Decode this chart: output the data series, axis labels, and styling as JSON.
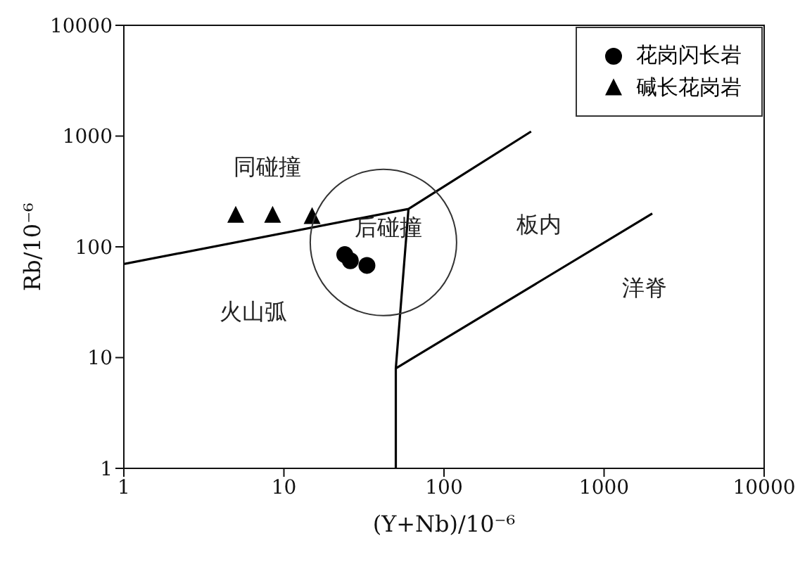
{
  "chart_data": {
    "type": "scatter",
    "xlabel": "(Y+Nb)/10⁻⁶",
    "ylabel": "Rb/10⁻⁶",
    "log": "xy",
    "xlim": [
      1,
      10000
    ],
    "ylim": [
      1,
      10000
    ],
    "xticks": [
      1,
      10,
      100,
      1000,
      10000
    ],
    "yticks": [
      1,
      10,
      100,
      1000,
      10000
    ],
    "grid": false,
    "legend": "top right",
    "series": [
      {
        "name": "花岗闪长岩",
        "marker": "circle",
        "color": "#000000",
        "x": [
          24,
          26,
          33
        ],
        "values": [
          85,
          75,
          68
        ]
      },
      {
        "name": "碱长花岗岩",
        "marker": "triangle",
        "color": "#000000",
        "x": [
          5,
          8.5,
          15
        ],
        "values": [
          190,
          190,
          185
        ]
      },
      {
        "type": "line",
        "marker": "none",
        "color": "#000000",
        "x": [
          1,
          60,
          350,
          null,
          60,
          50,
          50,
          null,
          50,
          2000
        ],
        "values": [
          70,
          220,
          1100,
          null,
          220,
          8,
          1,
          null,
          8,
          200
        ]
      }
    ],
    "annotations": [
      "同碰撞",
      "后碰撞",
      "板内",
      "洋脊",
      "火山弧"
    ]
  }
}
